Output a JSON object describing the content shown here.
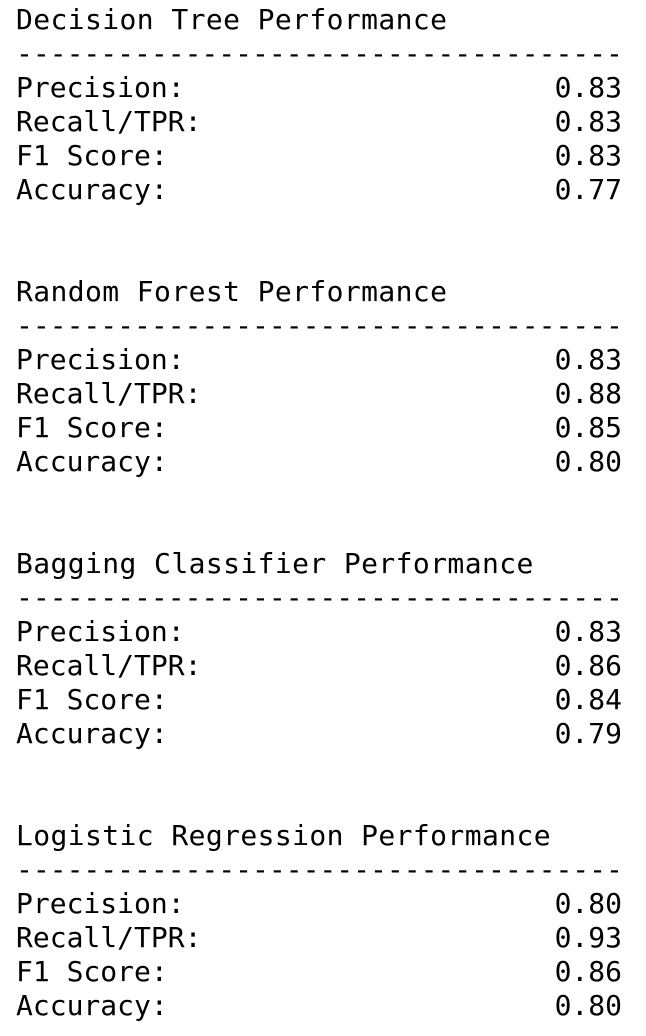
{
  "blocks": [
    {
      "title": "Decision Tree Performance",
      "rule": "------------------------------------",
      "rows": [
        {
          "label": "Precision:",
          "value": "0.83"
        },
        {
          "label": "Recall/TPR:",
          "value": "0.83"
        },
        {
          "label": "F1 Score:",
          "value": "0.83"
        },
        {
          "label": "Accuracy:",
          "value": "0.77"
        }
      ]
    },
    {
      "title": "Random Forest Performance",
      "rule": "------------------------------------",
      "rows": [
        {
          "label": "Precision:",
          "value": "0.83"
        },
        {
          "label": "Recall/TPR:",
          "value": "0.88"
        },
        {
          "label": "F1 Score:",
          "value": "0.85"
        },
        {
          "label": "Accuracy:",
          "value": "0.80"
        }
      ]
    },
    {
      "title": "Bagging Classifier Performance",
      "rule": "------------------------------------",
      "rows": [
        {
          "label": "Precision:",
          "value": "0.83"
        },
        {
          "label": "Recall/TPR:",
          "value": "0.86"
        },
        {
          "label": "F1 Score:",
          "value": "0.84"
        },
        {
          "label": "Accuracy:",
          "value": "0.79"
        }
      ]
    },
    {
      "title": "Logistic Regression Performance",
      "rule": "------------------------------------",
      "rows": [
        {
          "label": "Precision:",
          "value": "0.80"
        },
        {
          "label": "Recall/TPR:",
          "value": "0.93"
        },
        {
          "label": "F1 Score:",
          "value": "0.86"
        },
        {
          "label": "Accuracy:",
          "value": "0.80"
        }
      ]
    }
  ]
}
